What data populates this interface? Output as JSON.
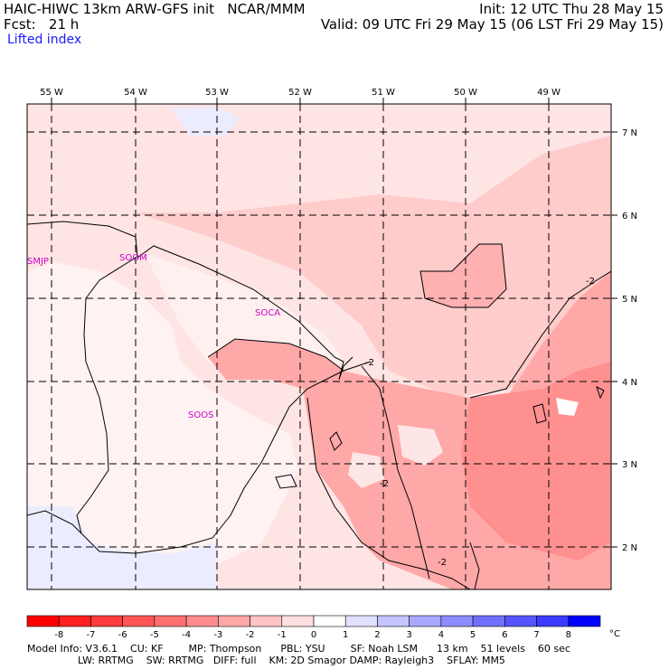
{
  "header": {
    "left_line1": "HAIC-HIWC 13km ARW-GFS init   NCAR/MMM",
    "left_line2": "Fcst:   21 h",
    "right_line1": "Init: 12 UTC Thu 28 May 15",
    "right_line2": "Valid: 09 UTC Fri 29 May 15 (06 LST Fri 29 May 15)",
    "field_name": "Lifted index"
  },
  "axes": {
    "lon_labels": [
      "55 W",
      "54 W",
      "53 W",
      "52 W",
      "51 W",
      "50 W",
      "49 W"
    ],
    "lat_labels": [
      "7 N",
      "6 N",
      "5 N",
      "4 N",
      "3 N",
      "2 N"
    ]
  },
  "stations": [
    "SMJP",
    "SOOM",
    "SOCA",
    "SOOS"
  ],
  "contours": [
    "-2",
    "-2",
    "-2",
    "-2"
  ],
  "colorbar": {
    "labels": [
      "-8",
      "-7",
      "-6",
      "-5",
      "-4",
      "-3",
      "-2",
      "-1",
      "0",
      "1",
      "2",
      "3",
      "4",
      "5",
      "6",
      "7",
      "8"
    ],
    "unit": "°C",
    "colors": [
      "#ff0000",
      "#ff2020",
      "#ff3b3b",
      "#ff5555",
      "#ff7070",
      "#ff8c8c",
      "#ffa8a8",
      "#ffc4c4",
      "#ffe0e0",
      "#ffffff",
      "#e0e0ff",
      "#c4c4ff",
      "#a8a8ff",
      "#8c8cff",
      "#7070ff",
      "#5555ff",
      "#3b3bff",
      "#0000ff"
    ]
  },
  "footer": {
    "line1": "Model Info: V3.6.1    CU: KF        MP: Thompson      PBL: YSU        SF: Noah LSM      13 km    51 levels    60 sec",
    "line2": "                LW: RRTMG    SW: RRTMG   DIFF: full    KM: 2D Smagor DAMP: Rayleigh3    SFLAY: MM5"
  }
}
